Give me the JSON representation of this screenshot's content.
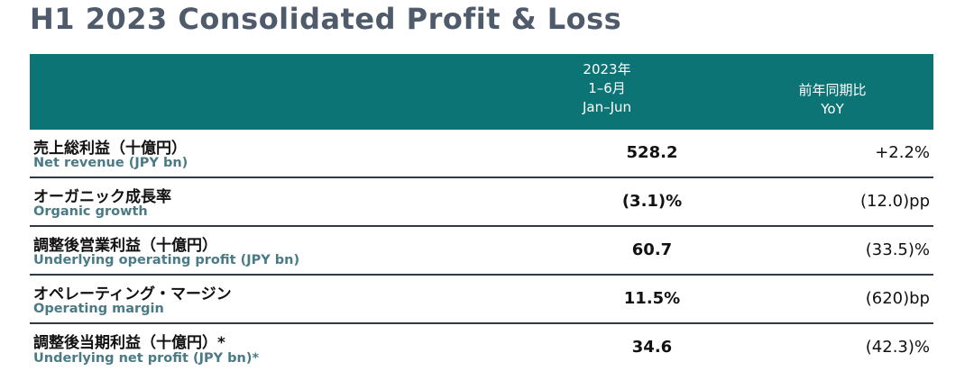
{
  "title": "H1 2023 Consolidated Profit & Loss",
  "header": {
    "period_line1": "2023年",
    "period_line2": "1–6月",
    "period_line3": "Jan–Jun",
    "yoy_line1": "前年同期比",
    "yoy_line2": "YoY"
  },
  "rows": [
    {
      "jp": "売上総利益（十億円）",
      "en": "Net revenue (JPY bn)",
      "value": "528.2",
      "yoy": "+2.2%"
    },
    {
      "jp": "オーガニック成長率",
      "en": "Organic growth",
      "value": "(3.1)%",
      "yoy": "(12.0)pp"
    },
    {
      "jp": "調整後営業利益（十億円）",
      "en": "Underlying operating profit (JPY bn)",
      "value": "60.7",
      "yoy": "(33.5)%"
    },
    {
      "jp": "オペレーティング・マージン",
      "en": "Operating margin",
      "value": "11.5%",
      "yoy": "(620)bp"
    },
    {
      "jp": "調整後当期利益（十億円）*",
      "en": "Underlying net profit (JPY bn)*",
      "value": "34.6",
      "yoy": "(42.3)%"
    }
  ]
}
